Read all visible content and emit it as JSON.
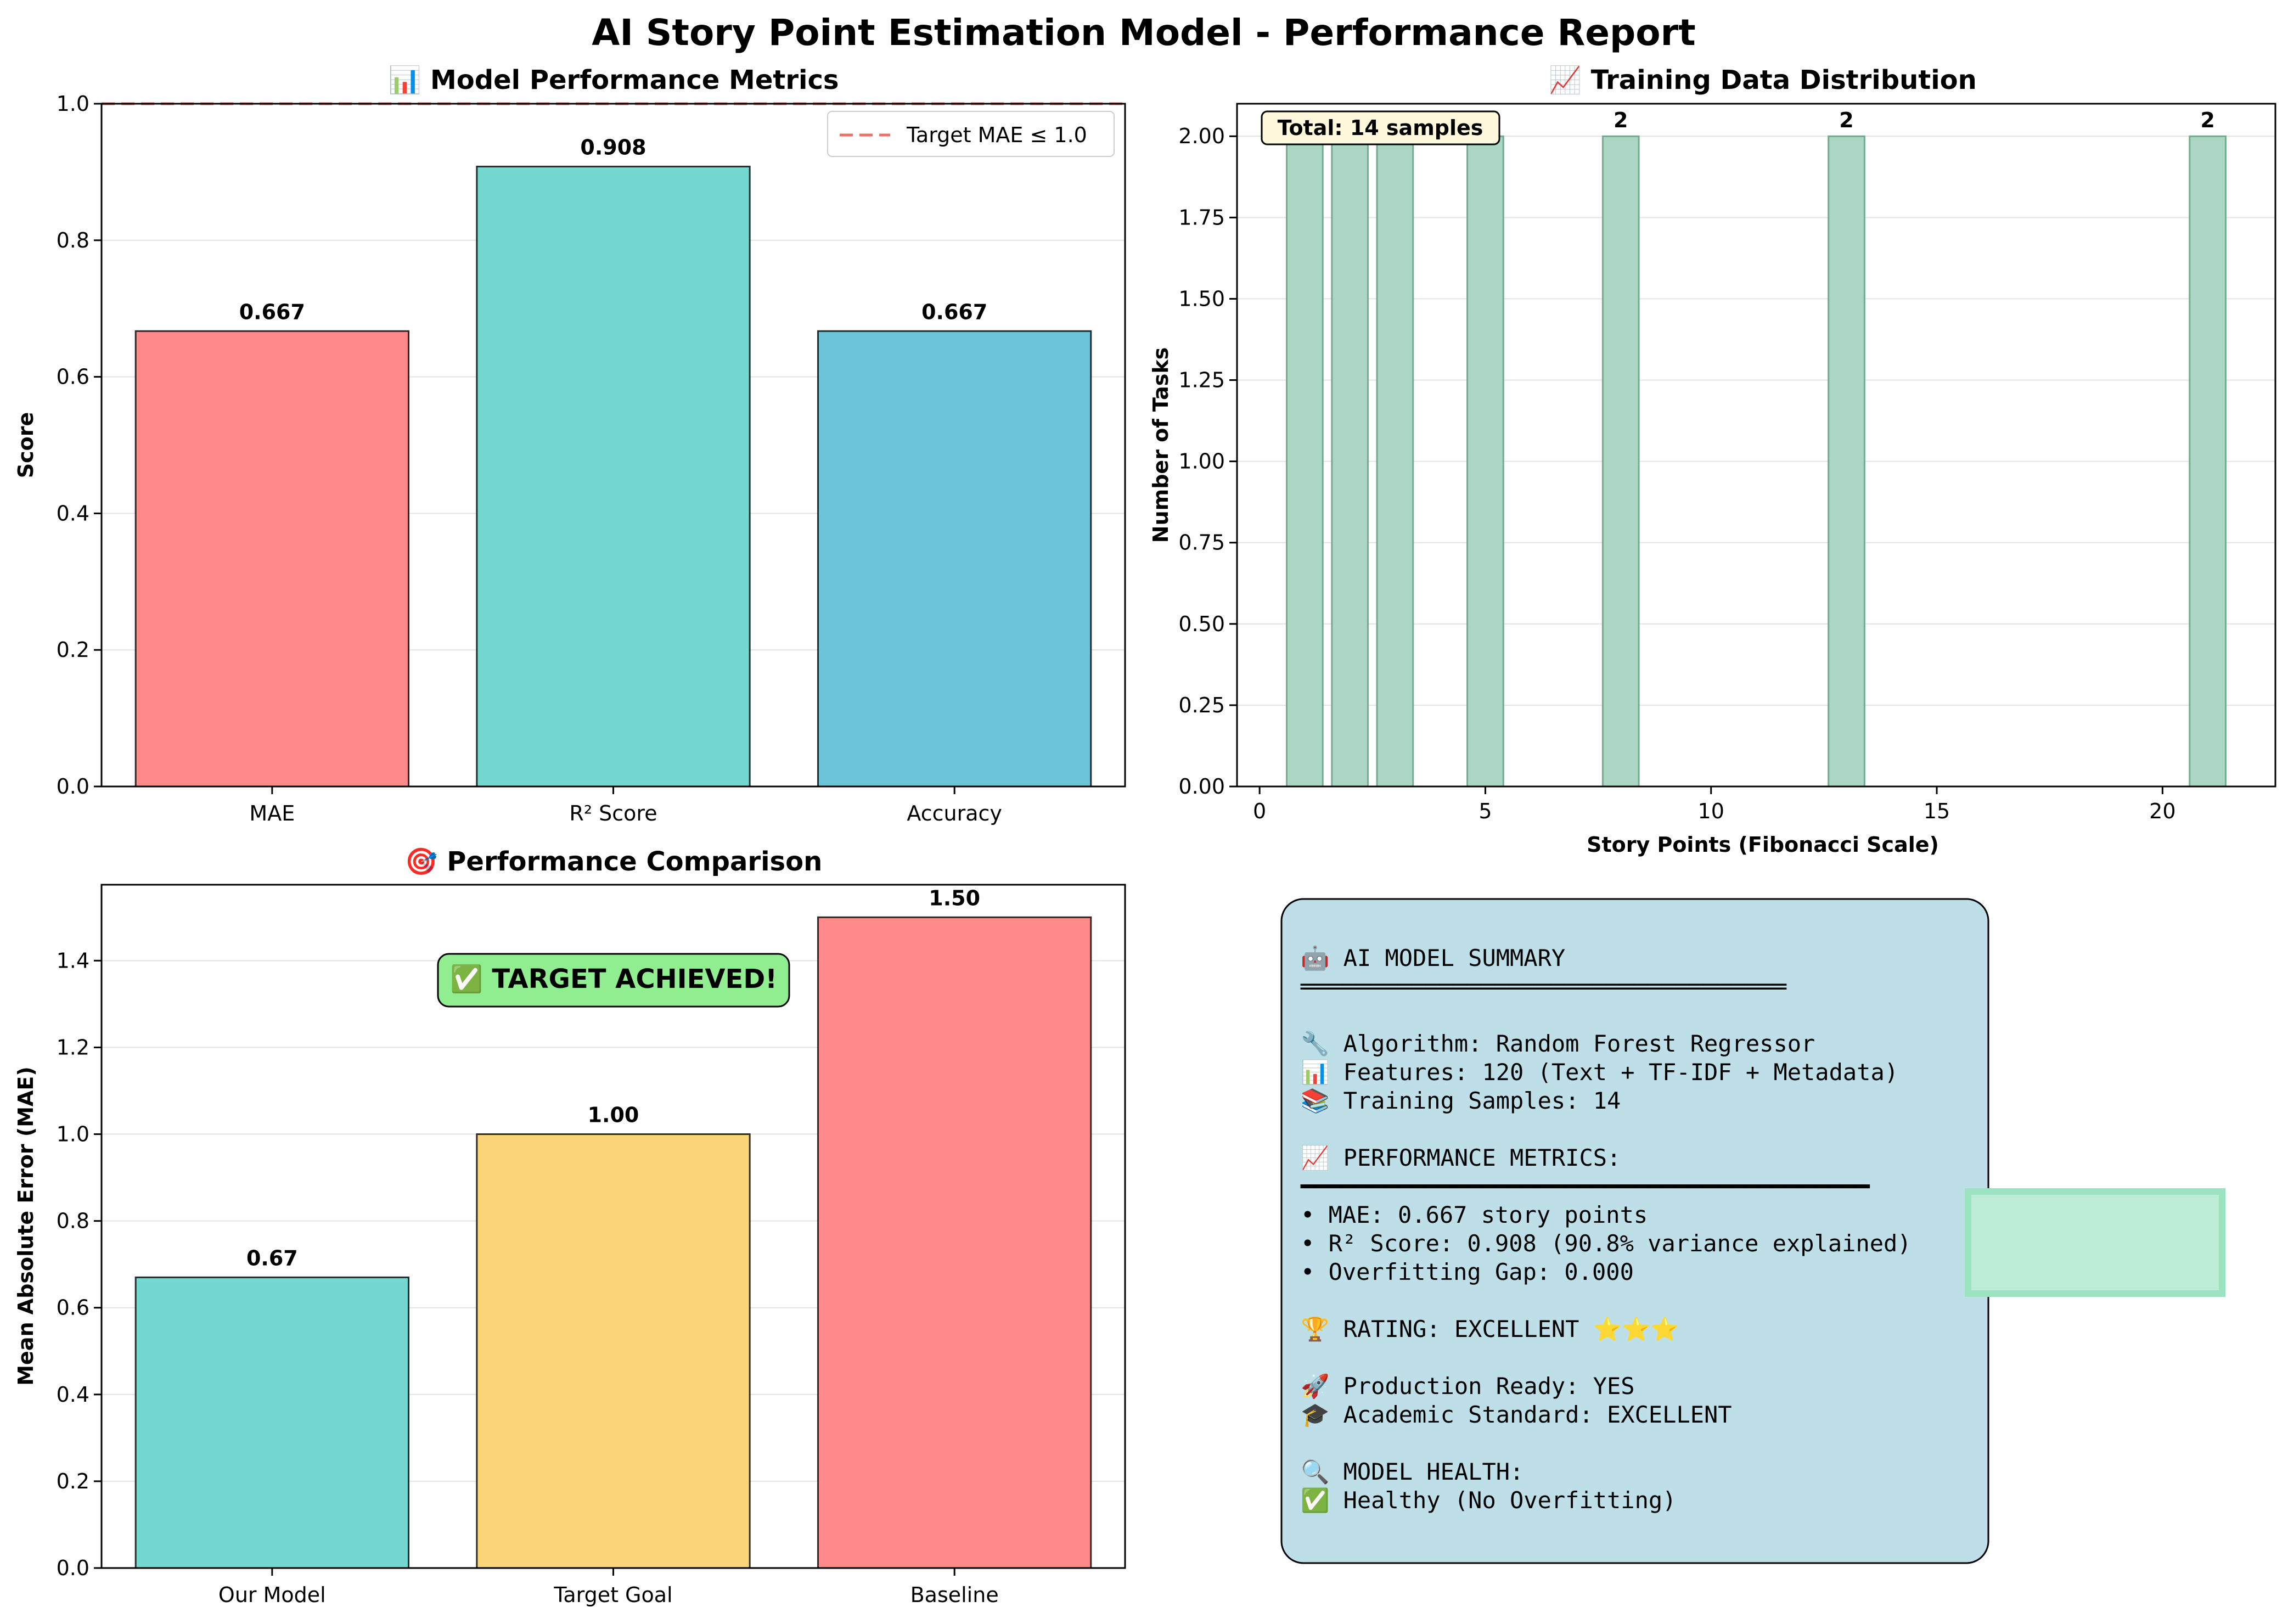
{
  "title": "AI Story Point Estimation Model - Performance Report",
  "colors": {
    "red": "#FF8A8A",
    "teal": "#73D8CF",
    "blue": "#6BC4D8",
    "yellow": "#FCD57A",
    "green_hist": "#ABD6C3",
    "target_line": "#E74C3C",
    "summary_bg": "#BEDFE8",
    "badge_bg": "#90EE90",
    "total_box_bg": "#FFF8DC",
    "accent_green": "#BDEDD6"
  },
  "charts": {
    "metrics": {
      "title": "📊 Model Performance Metrics",
      "ylabel": "Score",
      "legend_label": "Target MAE ≤ 1.0"
    },
    "distribution": {
      "title": "📈 Training Data Distribution",
      "ylabel": "Number of Tasks",
      "xlabel": "Story Points (Fibonacci Scale)",
      "total_label": "Total: 14 samples"
    },
    "comparison": {
      "title": "🎯 Performance Comparison",
      "ylabel": "Mean Absolute Error (MAE)",
      "badge": "✅ TARGET ACHIEVED!"
    }
  },
  "chart_data": [
    {
      "type": "bar",
      "title": "📊 Model Performance Metrics",
      "categories": [
        "MAE",
        "R² Score",
        "Accuracy"
      ],
      "values": [
        0.667,
        0.908,
        0.667
      ],
      "value_labels": [
        "0.667",
        "0.908",
        "0.667"
      ],
      "colors": [
        "#FF8A8A",
        "#73D8CF",
        "#6BC4D8"
      ],
      "xlabel": "",
      "ylabel": "Score",
      "ylim": [
        0,
        1.0
      ],
      "yticks": [
        "0.0",
        "0.2",
        "0.4",
        "0.6",
        "0.8",
        "1.0"
      ],
      "reference_line": {
        "y": 1.0,
        "label": "Target MAE ≤ 1.0",
        "style": "dashed"
      },
      "legend_position": "upper-right",
      "grid": "y"
    },
    {
      "type": "bar",
      "title": "📈 Training Data Distribution",
      "x": [
        1,
        2,
        3,
        5,
        8,
        13,
        21
      ],
      "values": [
        2,
        2,
        2,
        2,
        2,
        2,
        2
      ],
      "value_labels": [
        "2",
        "2",
        "2",
        "2",
        "2",
        "2",
        "2"
      ],
      "xlabel": "Story Points (Fibonacci Scale)",
      "ylabel": "Number of Tasks",
      "xlim": [
        -0.5,
        22.5
      ],
      "ylim": [
        0,
        2.1
      ],
      "xticks": [
        "0",
        "5",
        "10",
        "15",
        "20"
      ],
      "yticks": [
        "0.00",
        "0.25",
        "0.50",
        "0.75",
        "1.00",
        "1.25",
        "1.50",
        "1.75",
        "2.00"
      ],
      "annotation": "Total: 14 samples",
      "grid": "y"
    },
    {
      "type": "bar",
      "title": "🎯 Performance Comparison",
      "categories": [
        "Our Model",
        "Target Goal",
        "Baseline"
      ],
      "values": [
        0.67,
        1.0,
        1.5
      ],
      "value_labels": [
        "0.67",
        "1.00",
        "1.50"
      ],
      "colors": [
        "#73D8CF",
        "#FCD57A",
        "#FF8A8A"
      ],
      "xlabel": "",
      "ylabel": "Mean Absolute Error (MAE)",
      "ylim": [
        0,
        1.575
      ],
      "yticks": [
        "0.0",
        "0.2",
        "0.4",
        "0.6",
        "0.8",
        "1.0",
        "1.2",
        "1.4"
      ],
      "annotation": "✅ TARGET ACHIEVED!",
      "grid": "y"
    }
  ],
  "summary": {
    "lines": [
      "🤖 AI MODEL SUMMARY",
      "═══════════════════════════════════",
      "",
      "🔧 Algorithm: Random Forest Regressor",
      "📊 Features: 120 (Text + TF-IDF + Metadata)",
      "📚 Training Samples: 14",
      "",
      "📈 PERFORMANCE METRICS:",
      "━━━━━━━━━━━━━━━━━━━━━━━━━━━━━━━━━━━━━━━━━",
      "• MAE: 0.667 story points",
      "• R² Score: 0.908 (90.8% variance explained)",
      "• Overfitting Gap: 0.000",
      "",
      "🏆 RATING: EXCELLENT ⭐⭐⭐",
      "",
      "🚀 Production Ready: YES",
      "🎓 Academic Standard: EXCELLENT",
      "",
      "🔍 MODEL HEALTH:",
      "✅ Healthy (No Overfitting)"
    ]
  }
}
